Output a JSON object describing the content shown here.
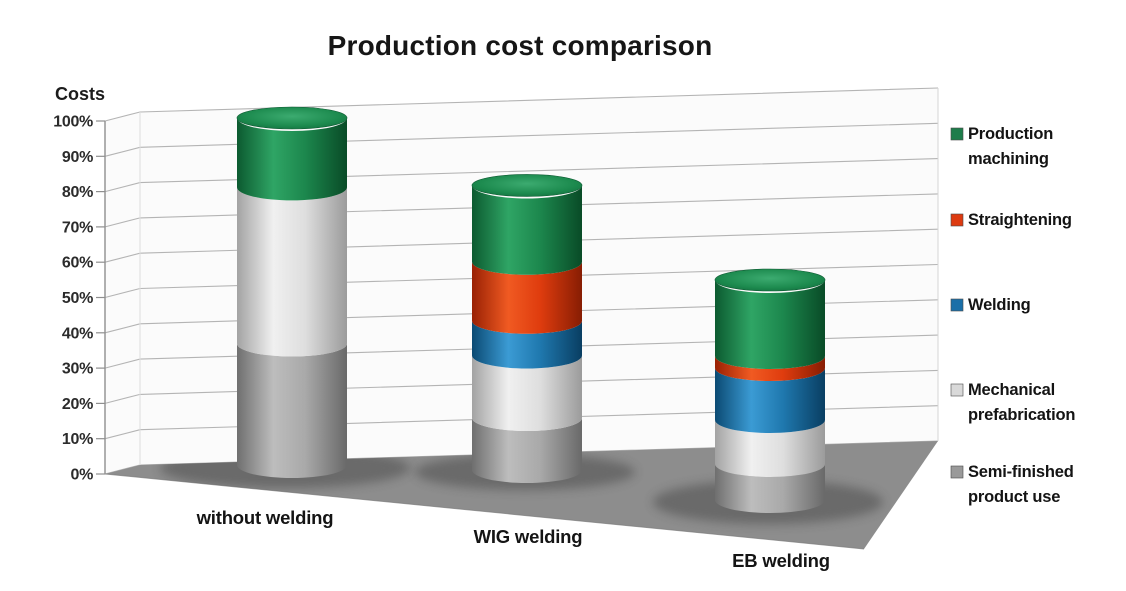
{
  "page": {
    "background": "#ffffff"
  },
  "chart_data": {
    "type": "bar",
    "subtype": "3d-cylinder-stacked",
    "title": "Production cost comparison",
    "ylabel": "Costs",
    "units": "%",
    "ylim": [
      0,
      100
    ],
    "yticks": [
      "100%",
      "90%",
      "80%",
      "70%",
      "60%",
      "50%",
      "40%",
      "30%",
      "20%",
      "10%",
      "0%"
    ],
    "grid": true,
    "legend_position": "right",
    "categories": [
      "without welding",
      "WIG welding",
      "EB welding"
    ],
    "series": [
      {
        "name": "Semi-finished product use",
        "color": "#9a9a9a",
        "values": [
          35,
          15,
          9
        ]
      },
      {
        "name": "Mechanical prefabrication",
        "color": "#d9d9d9",
        "values": [
          45,
          18,
          11
        ]
      },
      {
        "name": "Welding",
        "color": "#1a6fa8",
        "values": [
          0,
          10,
          13
        ]
      },
      {
        "name": "Straightening",
        "color": "#dd3a10",
        "values": [
          0,
          17,
          3
        ]
      },
      {
        "name": "Production machining",
        "color": "#1e7d4b",
        "values": [
          20,
          22,
          19
        ]
      }
    ],
    "stack_totals": [
      100,
      82,
      55
    ]
  },
  "legend": {
    "items": [
      {
        "color": "#1e7d4b",
        "lines": [
          "Production",
          "machining"
        ]
      },
      {
        "color": "#dd3a10",
        "lines": [
          "Straightening"
        ]
      },
      {
        "color": "#1a6fa8",
        "lines": [
          "Welding"
        ]
      },
      {
        "color": "#d9d9d9",
        "lines": [
          "Mechanical",
          "prefabrication"
        ]
      },
      {
        "color": "#9a9a9a",
        "lines": [
          "Semi-finished",
          "product use"
        ]
      }
    ]
  },
  "colors": {
    "floor": "#8d8d8d",
    "wall": "#fbfbfb",
    "gridline": "#b4b4b4",
    "axis": "#8f8f8f",
    "text": "#1a1a1a"
  }
}
